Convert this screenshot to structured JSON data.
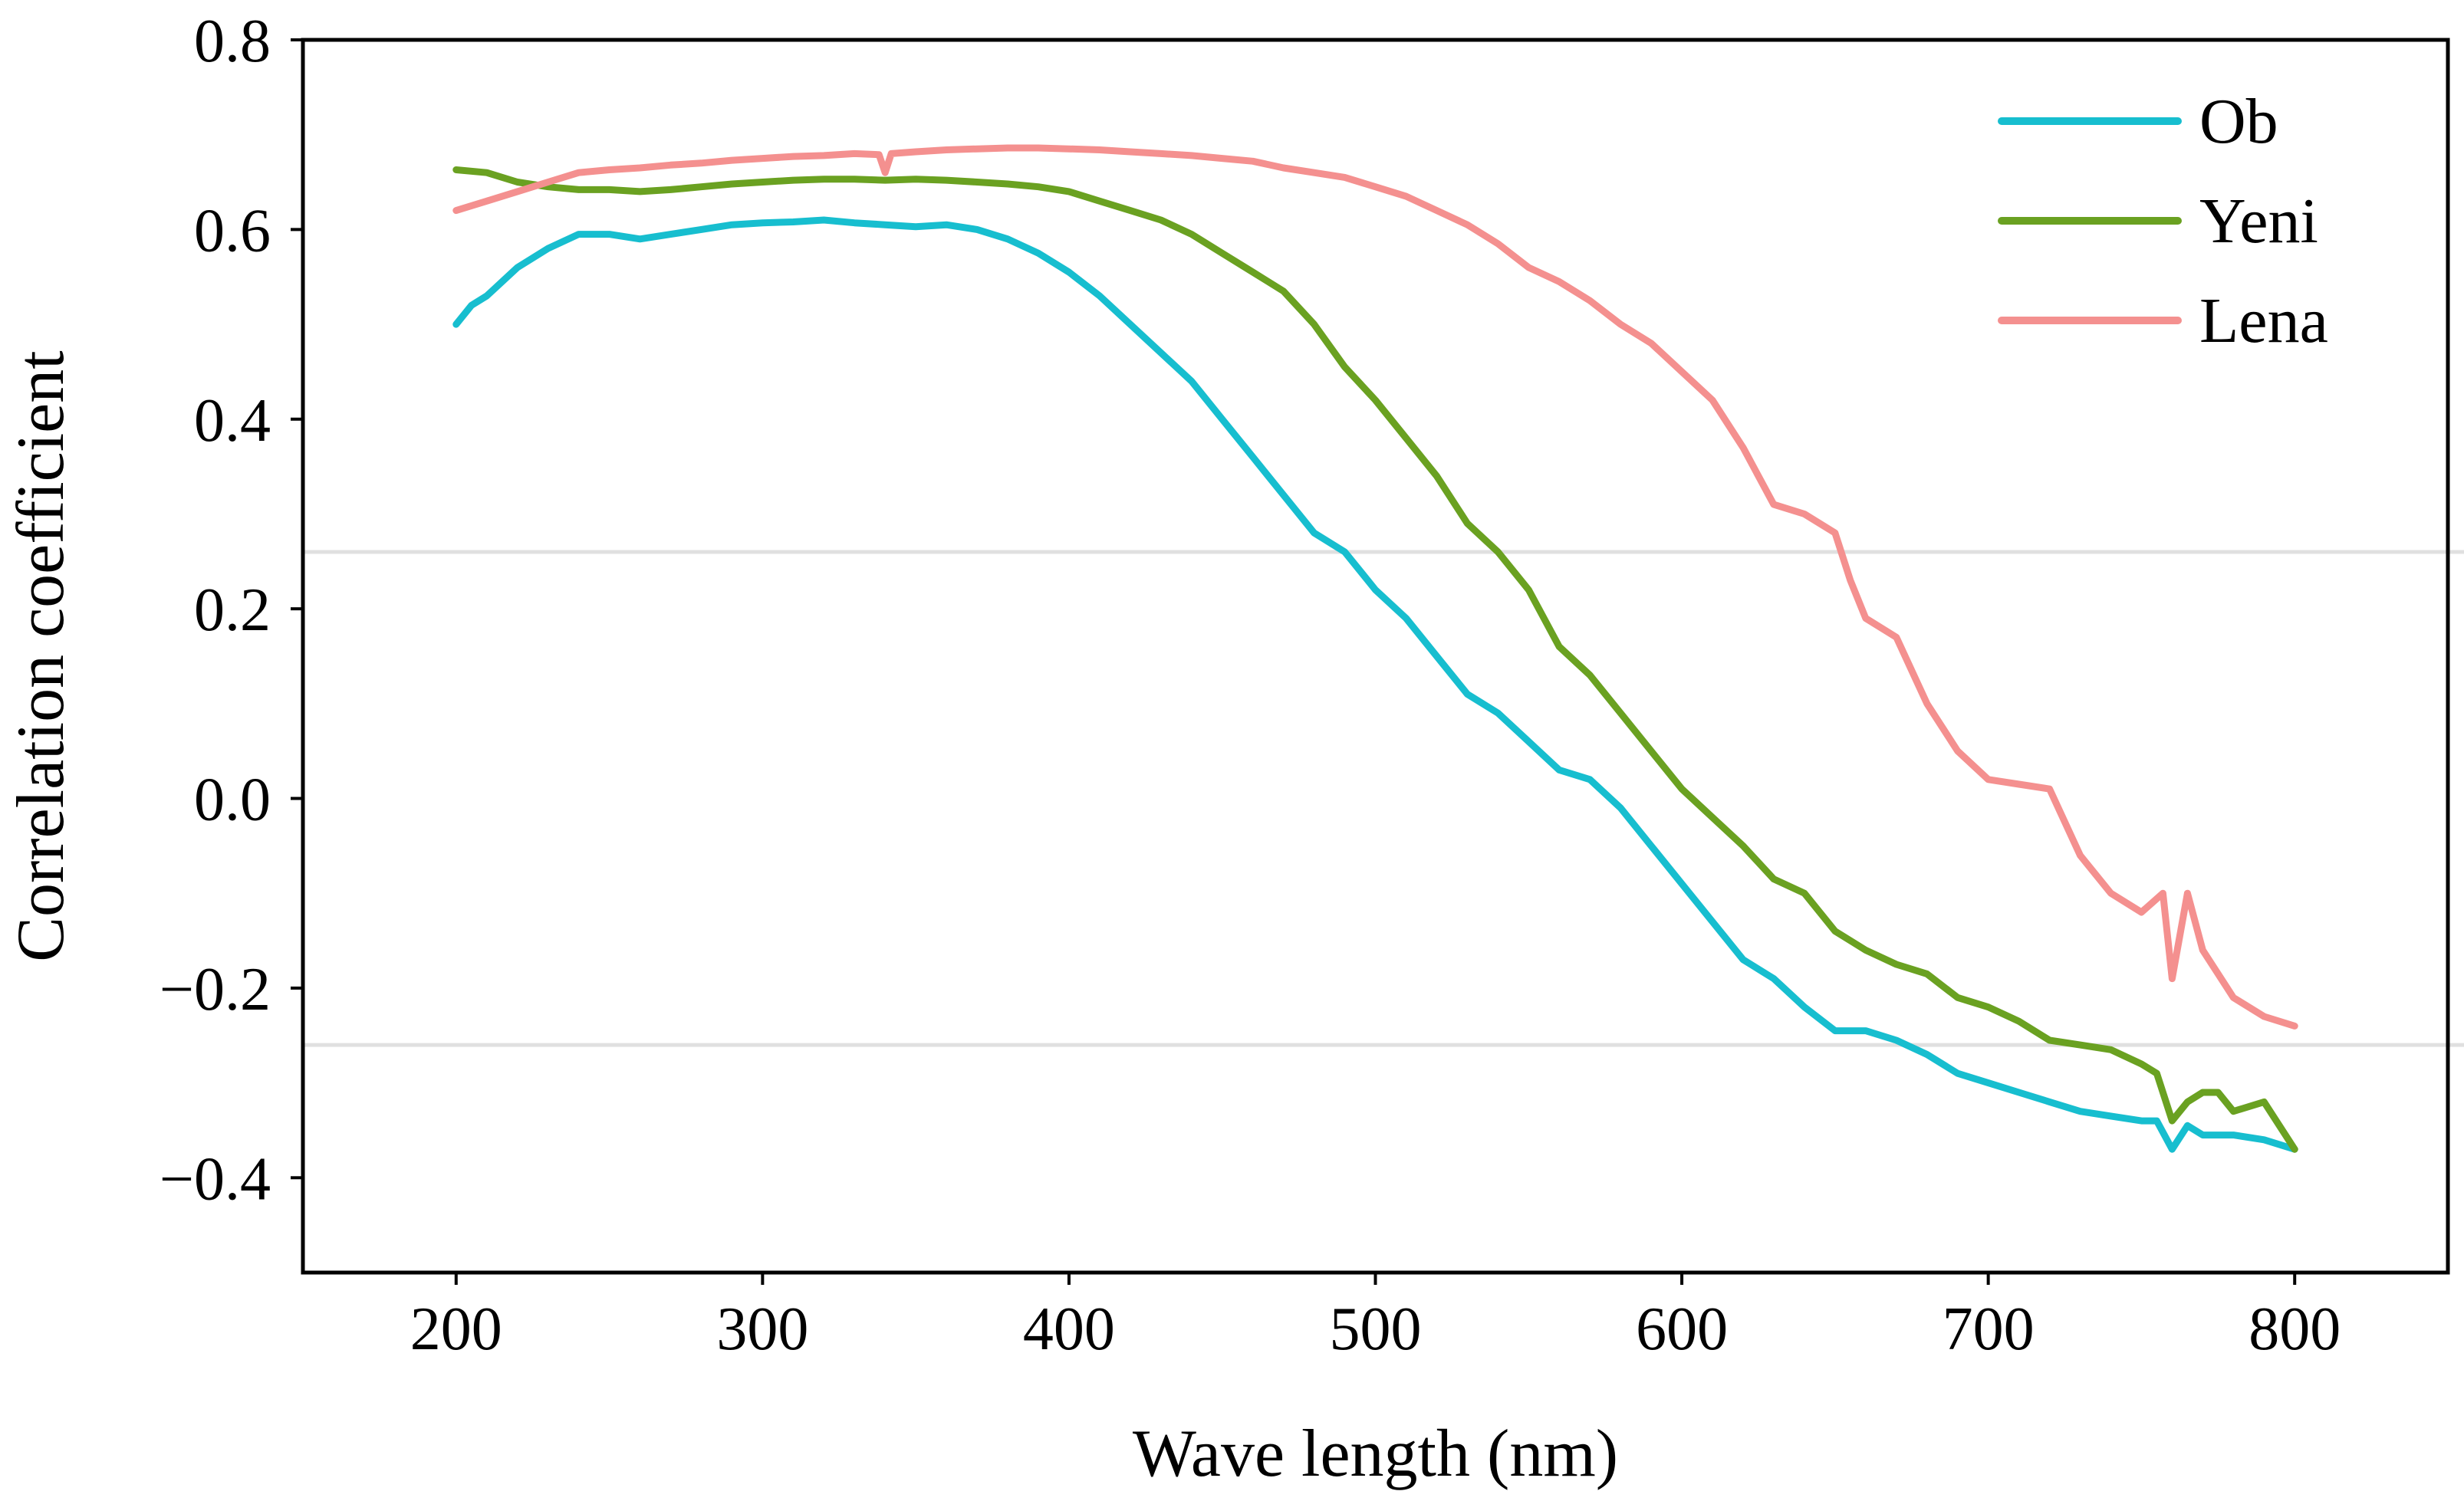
{
  "chart_data": {
    "type": "line",
    "title": "",
    "xlabel": "Wave length (nm)",
    "ylabel": "Correlation coefficient",
    "xlim": [
      150,
      850
    ],
    "ylim": [
      -0.5,
      0.8
    ],
    "xticks": [
      200,
      300,
      400,
      500,
      600,
      700,
      800
    ],
    "xtick_labels": [
      "200",
      "300",
      "400",
      "500",
      "600",
      "700",
      "800"
    ],
    "yticks": [
      0.8,
      0.6,
      0.4,
      0.2,
      0.0,
      -0.2,
      -0.4
    ],
    "ytick_labels": [
      "0.8",
      "0.6",
      "0.4",
      "0.2",
      "0.0",
      "−0.2",
      "−0.4"
    ],
    "grid": false,
    "reference_lines": [
      0.26,
      -0.26
    ],
    "reference_line_color": "#e0e0e0",
    "legend_position": "top-right",
    "series": [
      {
        "name": "Ob",
        "color": "#17becf",
        "x": [
          200,
          205,
          210,
          220,
          230,
          240,
          250,
          260,
          270,
          280,
          290,
          300,
          310,
          320,
          330,
          340,
          350,
          360,
          370,
          380,
          390,
          400,
          410,
          420,
          430,
          440,
          450,
          460,
          470,
          480,
          490,
          500,
          510,
          520,
          530,
          540,
          550,
          560,
          570,
          580,
          590,
          600,
          610,
          620,
          630,
          640,
          650,
          660,
          670,
          680,
          690,
          700,
          710,
          720,
          730,
          740,
          750,
          755,
          760,
          765,
          770,
          780,
          790,
          800
        ],
        "y": [
          0.5,
          0.52,
          0.53,
          0.56,
          0.58,
          0.595,
          0.595,
          0.59,
          0.595,
          0.6,
          0.605,
          0.607,
          0.608,
          0.61,
          0.607,
          0.605,
          0.603,
          0.605,
          0.6,
          0.59,
          0.575,
          0.555,
          0.53,
          0.5,
          0.47,
          0.44,
          0.4,
          0.36,
          0.32,
          0.28,
          0.26,
          0.22,
          0.19,
          0.15,
          0.11,
          0.09,
          0.06,
          0.03,
          0.02,
          -0.01,
          -0.05,
          -0.09,
          -0.13,
          -0.17,
          -0.19,
          -0.22,
          -0.245,
          -0.245,
          -0.255,
          -0.27,
          -0.29,
          -0.3,
          -0.31,
          -0.32,
          -0.33,
          -0.335,
          -0.34,
          -0.34,
          -0.37,
          -0.345,
          -0.355,
          -0.355,
          -0.36,
          -0.37
        ]
      },
      {
        "name": "Yeni",
        "color": "#6aa121",
        "x": [
          200,
          210,
          220,
          230,
          240,
          250,
          260,
          270,
          280,
          290,
          300,
          310,
          320,
          330,
          340,
          350,
          360,
          370,
          380,
          390,
          400,
          410,
          420,
          430,
          440,
          450,
          460,
          470,
          480,
          490,
          500,
          510,
          520,
          530,
          540,
          550,
          560,
          570,
          580,
          590,
          600,
          610,
          620,
          630,
          640,
          650,
          660,
          670,
          680,
          690,
          700,
          710,
          720,
          730,
          740,
          750,
          755,
          760,
          765,
          770,
          775,
          780,
          790,
          800
        ],
        "y": [
          0.663,
          0.66,
          0.65,
          0.645,
          0.642,
          0.642,
          0.64,
          0.642,
          0.645,
          0.648,
          0.65,
          0.652,
          0.653,
          0.653,
          0.652,
          0.653,
          0.652,
          0.65,
          0.648,
          0.645,
          0.64,
          0.63,
          0.62,
          0.61,
          0.595,
          0.575,
          0.555,
          0.535,
          0.5,
          0.455,
          0.42,
          0.38,
          0.34,
          0.29,
          0.26,
          0.22,
          0.16,
          0.13,
          0.09,
          0.05,
          0.01,
          -0.02,
          -0.05,
          -0.085,
          -0.1,
          -0.14,
          -0.16,
          -0.175,
          -0.185,
          -0.21,
          -0.22,
          -0.235,
          -0.255,
          -0.26,
          -0.265,
          -0.28,
          -0.29,
          -0.34,
          -0.32,
          -0.31,
          -0.31,
          -0.33,
          -0.32,
          -0.37
        ]
      },
      {
        "name": "Lena",
        "color": "#f4908f",
        "x": [
          200,
          210,
          220,
          230,
          240,
          250,
          260,
          270,
          280,
          290,
          300,
          310,
          320,
          330,
          338,
          340,
          342,
          350,
          360,
          370,
          380,
          390,
          400,
          410,
          420,
          430,
          440,
          450,
          460,
          470,
          480,
          490,
          500,
          510,
          520,
          530,
          540,
          550,
          560,
          570,
          580,
          590,
          600,
          610,
          620,
          630,
          640,
          650,
          655,
          660,
          670,
          680,
          690,
          700,
          710,
          720,
          730,
          740,
          750,
          757,
          760,
          765,
          770,
          780,
          790,
          800
        ],
        "y": [
          0.62,
          0.63,
          0.64,
          0.65,
          0.66,
          0.663,
          0.665,
          0.668,
          0.67,
          0.673,
          0.675,
          0.677,
          0.678,
          0.68,
          0.679,
          0.66,
          0.68,
          0.682,
          0.684,
          0.685,
          0.686,
          0.686,
          0.685,
          0.684,
          0.682,
          0.68,
          0.678,
          0.675,
          0.672,
          0.665,
          0.66,
          0.655,
          0.645,
          0.635,
          0.62,
          0.605,
          0.585,
          0.56,
          0.545,
          0.525,
          0.5,
          0.48,
          0.45,
          0.42,
          0.37,
          0.31,
          0.3,
          0.28,
          0.23,
          0.19,
          0.17,
          0.1,
          0.05,
          0.02,
          0.015,
          0.01,
          -0.06,
          -0.1,
          -0.12,
          -0.1,
          -0.19,
          -0.1,
          -0.16,
          -0.21,
          -0.23,
          -0.24
        ]
      }
    ]
  }
}
